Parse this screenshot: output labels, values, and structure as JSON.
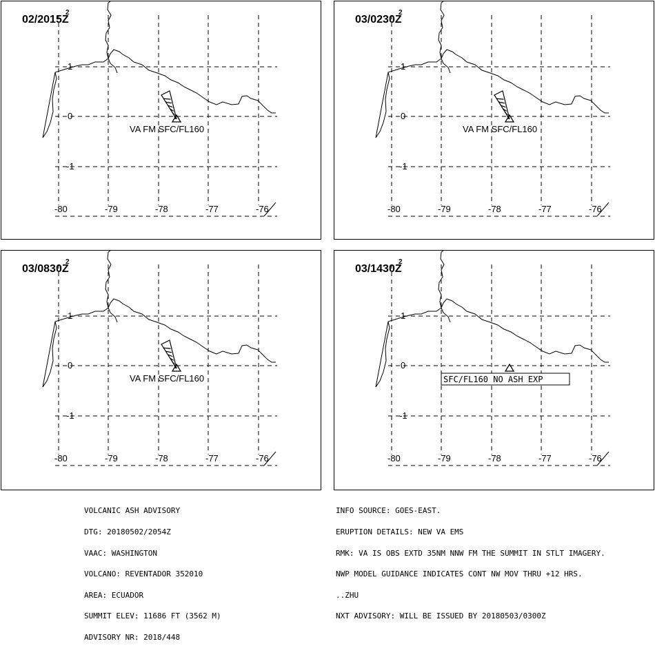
{
  "panels": [
    {
      "time": "02/2015Z",
      "superscript": "2",
      "annotation": "VA FM SFC/FL160",
      "annotation_style": "plume"
    },
    {
      "time": "03/0230Z",
      "superscript": "2",
      "annotation": "VA FM SFC/FL160",
      "annotation_style": "plume"
    },
    {
      "time": "03/0830Z",
      "superscript": "2",
      "annotation": "VA FM SFC/FL160",
      "annotation_style": "plume"
    },
    {
      "time": "03/1430Z",
      "superscript": "2",
      "annotation": "SFC/FL160 NO ASH EXP",
      "annotation_style": "box"
    }
  ],
  "axes": {
    "lat_labels": [
      "1",
      "0",
      "-1"
    ],
    "lon_labels": [
      "-80",
      "-79",
      "-78",
      "-77",
      "-76"
    ]
  },
  "advisory_left": [
    "VOLCANIC ASH ADVISORY",
    "DTG: 20180502/2054Z",
    "VAAC: WASHINGTON",
    "VOLCANO: REVENTADOR 352010",
    "AREA: ECUADOR",
    "SUMMIT ELEV: 11686 FT (3562 M)",
    "ADVISORY NR: 2018/448"
  ],
  "advisory_right": [
    "INFO SOURCE: GOES-EAST.",
    "ERUPTION DETAILS: NEW VA EMS",
    "RMK: VA IS OBS EXTD 35NM NNW FM THE SUMMIT IN STLT IMAGERY.",
    "NWP MODEL GUIDANCE INDICATES CONT NW MOV THRU +12 HRS.",
    "..ZHU",
    "NXT ADVISORY: WILL BE ISSUED BY 20180503/0300Z"
  ],
  "colors": {
    "ink": "#000000",
    "background": "#ffffff"
  }
}
